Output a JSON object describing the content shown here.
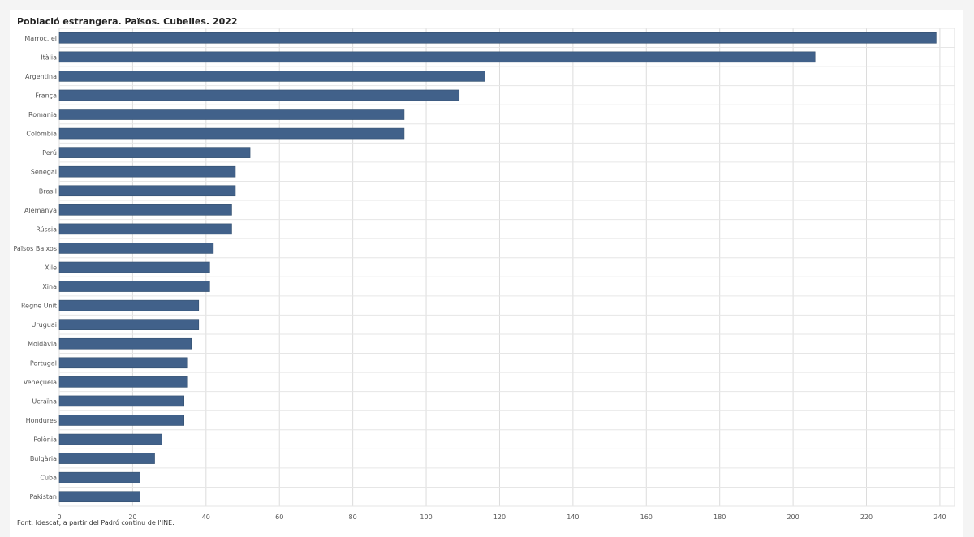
{
  "page": {
    "title": "Població estrangera. Països. Cubelles. 2022",
    "source": "Font: Idescat, a partir del Padró continu de l'INE."
  },
  "chart_data": {
    "type": "bar",
    "orientation": "horizontal",
    "title": "Població estrangera. Països. Cubelles. 2022",
    "xlabel": "",
    "ylabel": "",
    "categories": [
      "Marroc, el",
      "Itàlia",
      "Argentina",
      "França",
      "Romania",
      "Colòmbia",
      "Perú",
      "Senegal",
      "Brasil",
      "Alemanya",
      "Rússia",
      "Països Baixos",
      "Xile",
      "Xina",
      "Regne Unit",
      "Uruguai",
      "Moldàvia",
      "Portugal",
      "Veneçuela",
      "Ucraïna",
      "Hondures",
      "Polònia",
      "Bulgària",
      "Cuba",
      "Pakistan"
    ],
    "values": [
      239,
      206,
      116,
      109,
      94,
      94,
      52,
      48,
      48,
      47,
      47,
      42,
      41,
      41,
      38,
      38,
      36,
      35,
      35,
      34,
      34,
      28,
      26,
      22,
      22
    ],
    "xlim": [
      0,
      244
    ],
    "xticks": [
      0,
      20,
      40,
      60,
      80,
      100,
      120,
      140,
      160,
      180,
      200,
      220,
      240
    ],
    "grid": true,
    "legend": "none",
    "bar_color": "#41618a"
  }
}
